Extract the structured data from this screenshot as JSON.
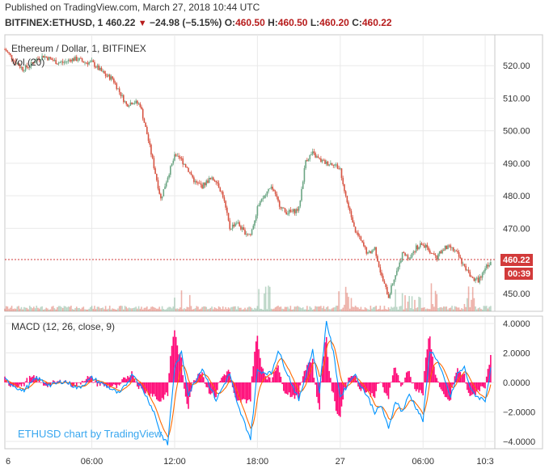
{
  "header": {
    "published": "Published on TradingView.com, March 27, 2018 10:44 UTC",
    "symbol": "BITFINEX:ETHUSD, 1",
    "last": "460.22",
    "arrow": "▼",
    "change": "−24.98 (−5.15%)",
    "o_label": "O:",
    "o_val": "460.50",
    "h_label": "H:",
    "h_val": "460.50",
    "l_label": "L:",
    "l_val": "460.20",
    "c_label": "C:",
    "c_val": "460.22"
  },
  "main_pane": {
    "title": "Ethereum / Dollar, 1, BITFINEX",
    "volume_label": "Vol (20)",
    "price_tag": "460.22",
    "countdown_tag": "00:39",
    "watermark": "ETHUSD chart by TradingView"
  },
  "macd_pane": {
    "title": "MACD (12, 26, close, 9)"
  },
  "colors": {
    "up": "#6ba583",
    "down": "#d75442",
    "macd_line": "#0094ff",
    "signal_line": "#ff6a00",
    "histogram": "#ff0a78",
    "price_line": "#d23a3a",
    "grid": "#e9e9e9",
    "watermark": "#37a6ef"
  },
  "chart_data": [
    {
      "type": "line",
      "series": [
        {
          "name": "ETHUSD",
          "y_axis": "price"
        }
      ],
      "x_ticks": [
        "6",
        "06:00",
        "12:00",
        "18:00",
        "27",
        "06:00",
        "10:3"
      ],
      "x_tick_hours": [
        0,
        6,
        12,
        18,
        24,
        30,
        34.5
      ],
      "y_ticks": [
        "520.00",
        "510.00",
        "500.00",
        "490.00",
        "480.00",
        "470.00",
        "450.00"
      ],
      "y_tick_values": [
        520,
        510,
        500,
        490,
        480,
        470,
        450
      ],
      "ylim": [
        444.5,
        529.5
      ],
      "xlim": [
        -0.3,
        35.2
      ],
      "last_price": 460.22,
      "close_path_hours": [
        -0.3,
        0.5,
        1.0,
        1.5,
        2.0,
        2.5,
        3.0,
        3.5,
        4.0,
        4.5,
        5.0,
        5.5,
        6.0,
        6.5,
        7.0,
        7.5,
        8.0,
        8.5,
        9.0,
        9.5,
        10.0,
        10.5,
        11.0,
        11.5,
        12.0,
        12.5,
        13.0,
        13.5,
        14.0,
        14.5,
        15.0,
        15.5,
        16.0,
        16.5,
        17.0,
        17.5,
        18.0,
        18.5,
        19.0,
        19.5,
        20.0,
        20.5,
        21.0,
        21.5,
        22.0,
        22.5,
        23.0,
        23.5,
        24.0,
        24.5,
        25.0,
        25.5,
        26.0,
        26.5,
        27.0,
        27.5,
        28.0,
        28.5,
        29.0,
        29.5,
        30.0,
        30.5,
        31.0,
        31.5,
        32.0,
        32.5,
        33.0,
        33.5,
        34.0,
        34.5,
        35.0
      ],
      "close_path": [
        525,
        521,
        519,
        520,
        522,
        523,
        522,
        521,
        521,
        522,
        522,
        521,
        521,
        519,
        517,
        516,
        512,
        508,
        509,
        508,
        499,
        489,
        479,
        486,
        492,
        491,
        488,
        484,
        483,
        485,
        485,
        480,
        470,
        472,
        469,
        468,
        476,
        480,
        483,
        478,
        475,
        475,
        476,
        491,
        493,
        491,
        490,
        490,
        488,
        478,
        470,
        466,
        462,
        464,
        455,
        449,
        456,
        462,
        461,
        464,
        465,
        463,
        461,
        464,
        464,
        462,
        458,
        455,
        454,
        458,
        460.22
      ]
    },
    {
      "type": "bar",
      "series": [
        {
          "name": "Vol (20)"
        }
      ],
      "note_values": "relative volume, no scale shown",
      "hours": [
        12.5,
        18.5,
        24.5,
        28.5,
        29.5,
        31.0,
        33.5
      ],
      "spikes": [
        1.0,
        0.9,
        0.8,
        0.95,
        1.0,
        0.9,
        0.8
      ]
    },
    {
      "type": "line",
      "title": "MACD (12, 26, close, 9)",
      "series": [
        {
          "name": "MACD"
        },
        {
          "name": "Signal"
        },
        {
          "name": "Histogram"
        }
      ],
      "y_ticks": [
        "4.0000",
        "2.0000",
        "0.0000",
        "−2.0000",
        "−4.0000"
      ],
      "y_tick_values": [
        4,
        2,
        0,
        -2,
        -4
      ],
      "ylim": [
        -4.5,
        4.5
      ],
      "macd_path_hours": [
        -0.3,
        1.0,
        2.0,
        3.0,
        4.0,
        5.0,
        6.0,
        7.0,
        8.0,
        9.0,
        10.0,
        10.5,
        11.0,
        11.5,
        12.0,
        12.5,
        13.0,
        14.0,
        15.0,
        16.0,
        16.5,
        17.0,
        17.5,
        18.0,
        19.0,
        19.5,
        20.0,
        21.0,
        22.0,
        22.5,
        23.0,
        23.5,
        24.0,
        25.0,
        26.0,
        26.5,
        27.0,
        27.5,
        28.0,
        28.5,
        29.0,
        30.0,
        30.5,
        31.0,
        32.0,
        32.5,
        33.0,
        33.5,
        34.0,
        34.5,
        35.0
      ],
      "macd_path": [
        0.2,
        -0.6,
        0.3,
        -0.2,
        0.1,
        -0.4,
        0.3,
        -0.2,
        -0.8,
        0.6,
        -1.0,
        -2.0,
        -3.5,
        -4.2,
        1.0,
        2.0,
        -0.8,
        1.0,
        -1.2,
        0.6,
        -1.4,
        -2.6,
        -3.8,
        0.8,
        0.6,
        2.2,
        1.0,
        -1.2,
        2.2,
        -0.6,
        4.2,
        2.0,
        -1.0,
        0.6,
        -1.0,
        -2.0,
        -1.6,
        -3.2,
        -1.2,
        -2.0,
        -0.8,
        -2.6,
        2.2,
        1.6,
        -1.0,
        0.6,
        1.0,
        -0.6,
        -1.0,
        -1.2,
        1.4
      ]
    }
  ]
}
